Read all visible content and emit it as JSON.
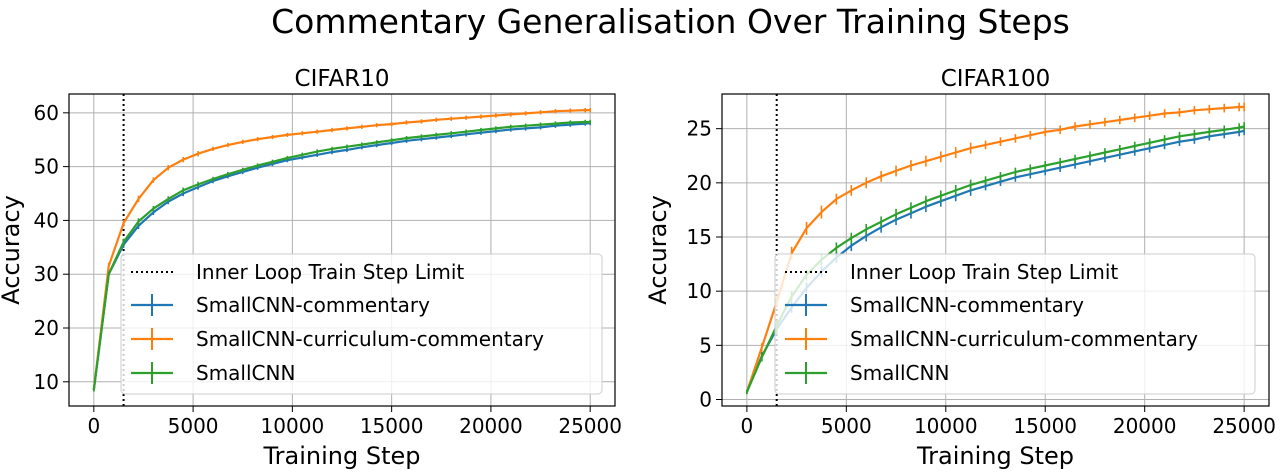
{
  "figure_title": "Commentary Generalisation Over Training Steps",
  "colors": {
    "commentary": "#1f77b4",
    "curriculum": "#ff7f0e",
    "baseline": "#2ca02c",
    "grid": "#b0b0b0",
    "vline": "#000000"
  },
  "chart_data": [
    {
      "type": "line",
      "title": "CIFAR10",
      "xlabel": "Training Step",
      "ylabel": "Accuracy",
      "xlim": [
        -1250,
        26250
      ],
      "ylim": [
        5.5,
        63.5
      ],
      "xticks": [
        0,
        5000,
        10000,
        15000,
        20000,
        25000
      ],
      "yticks": [
        10,
        20,
        30,
        40,
        50,
        60
      ],
      "grid": true,
      "legend_position": "lower right",
      "vline": {
        "x": 1500,
        "label": "Inner Loop Train Step Limit",
        "style": "dotted"
      },
      "series": [
        {
          "name": "SmallCNN-commentary",
          "color": "commentary",
          "x": [
            0,
            750,
            1500,
            2250,
            3000,
            3750,
            4500,
            5250,
            6000,
            6750,
            7500,
            8250,
            9000,
            9750,
            10500,
            11250,
            12000,
            12750,
            13500,
            14250,
            15000,
            15750,
            16500,
            17250,
            18000,
            18750,
            19500,
            20250,
            21000,
            21750,
            22500,
            23250,
            24000,
            24750,
            25000
          ],
          "y": [
            8.5,
            30.0,
            35.5,
            39.0,
            41.5,
            43.5,
            45.0,
            46.2,
            47.3,
            48.2,
            49.0,
            49.8,
            50.5,
            51.2,
            51.7,
            52.2,
            52.7,
            53.1,
            53.6,
            54.0,
            54.4,
            54.8,
            55.1,
            55.4,
            55.7,
            56.0,
            56.3,
            56.6,
            56.9,
            57.1,
            57.3,
            57.6,
            57.8,
            58.0,
            58.1
          ],
          "err": [
            0.3,
            0.5,
            0.6,
            0.6,
            0.5,
            0.5,
            0.5,
            0.5,
            0.4,
            0.4,
            0.4,
            0.4,
            0.4,
            0.4,
            0.4,
            0.4,
            0.4,
            0.4,
            0.4,
            0.4,
            0.4,
            0.4,
            0.4,
            0.4,
            0.4,
            0.4,
            0.4,
            0.4,
            0.4,
            0.4,
            0.4,
            0.4,
            0.4,
            0.4,
            0.4
          ]
        },
        {
          "name": "SmallCNN-curriculum-commentary",
          "color": "curriculum",
          "x": [
            0,
            750,
            1500,
            2250,
            3000,
            3750,
            4500,
            5250,
            6000,
            6750,
            7500,
            8250,
            9000,
            9750,
            10500,
            11250,
            12000,
            12750,
            13500,
            14250,
            15000,
            15750,
            16500,
            17250,
            18000,
            18750,
            19500,
            20250,
            21000,
            21750,
            22500,
            23250,
            24000,
            24750,
            25000
          ],
          "y": [
            8.5,
            31.5,
            39.5,
            44.0,
            47.5,
            49.8,
            51.3,
            52.4,
            53.3,
            54.0,
            54.6,
            55.1,
            55.5,
            55.9,
            56.2,
            56.5,
            56.8,
            57.1,
            57.4,
            57.7,
            57.9,
            58.2,
            58.4,
            58.7,
            58.9,
            59.1,
            59.3,
            59.5,
            59.7,
            59.9,
            60.1,
            60.3,
            60.4,
            60.5,
            60.5
          ],
          "err": [
            0.3,
            0.6,
            0.6,
            0.6,
            0.5,
            0.5,
            0.5,
            0.5,
            0.4,
            0.4,
            0.4,
            0.4,
            0.4,
            0.4,
            0.4,
            0.4,
            0.4,
            0.4,
            0.4,
            0.4,
            0.4,
            0.4,
            0.4,
            0.4,
            0.4,
            0.4,
            0.4,
            0.4,
            0.4,
            0.4,
            0.4,
            0.4,
            0.4,
            0.4,
            0.4
          ]
        },
        {
          "name": "SmallCNN",
          "color": "baseline",
          "x": [
            0,
            750,
            1500,
            2250,
            3000,
            3750,
            4500,
            5250,
            6000,
            6750,
            7500,
            8250,
            9000,
            9750,
            10500,
            11250,
            12000,
            12750,
            13500,
            14250,
            15000,
            15750,
            16500,
            17250,
            18000,
            18750,
            19500,
            20250,
            21000,
            21750,
            22500,
            23250,
            24000,
            24750,
            25000
          ],
          "y": [
            8.5,
            30.0,
            36.0,
            39.8,
            42.2,
            44.0,
            45.6,
            46.7,
            47.7,
            48.6,
            49.4,
            50.2,
            50.9,
            51.6,
            52.2,
            52.8,
            53.3,
            53.7,
            54.1,
            54.5,
            54.9,
            55.3,
            55.6,
            55.9,
            56.2,
            56.5,
            56.8,
            57.1,
            57.4,
            57.6,
            57.8,
            58.0,
            58.2,
            58.3,
            58.3
          ],
          "err": [
            0.3,
            0.5,
            0.6,
            0.6,
            0.5,
            0.5,
            0.5,
            0.5,
            0.4,
            0.4,
            0.4,
            0.4,
            0.4,
            0.4,
            0.4,
            0.4,
            0.4,
            0.4,
            0.4,
            0.4,
            0.4,
            0.4,
            0.4,
            0.4,
            0.4,
            0.4,
            0.4,
            0.4,
            0.4,
            0.4,
            0.4,
            0.4,
            0.4,
            0.4,
            0.4
          ]
        }
      ]
    },
    {
      "type": "line",
      "title": "CIFAR100",
      "xlabel": "Training Step",
      "ylabel": "Accuracy",
      "xlim": [
        -1250,
        26250
      ],
      "ylim": [
        -0.6,
        28.2
      ],
      "xticks": [
        0,
        5000,
        10000,
        15000,
        20000,
        25000
      ],
      "yticks": [
        0,
        5,
        10,
        15,
        20,
        25
      ],
      "grid": true,
      "legend_position": "lower right",
      "vline": {
        "x": 1500,
        "label": "Inner Loop Train Step Limit",
        "style": "dotted"
      },
      "series": [
        {
          "name": "SmallCNN-commentary",
          "color": "commentary",
          "x": [
            0,
            750,
            1500,
            2250,
            3000,
            3750,
            4500,
            5250,
            6000,
            6750,
            7500,
            8250,
            9000,
            9750,
            10500,
            11250,
            12000,
            12750,
            13500,
            14250,
            15000,
            15750,
            16500,
            17250,
            18000,
            18750,
            19500,
            20250,
            21000,
            21750,
            22500,
            23250,
            24000,
            24750,
            25000
          ],
          "y": [
            0.7,
            4.0,
            6.5,
            8.5,
            10.3,
            11.8,
            13.1,
            14.2,
            15.1,
            15.9,
            16.6,
            17.2,
            17.8,
            18.3,
            18.8,
            19.3,
            19.7,
            20.1,
            20.5,
            20.8,
            21.1,
            21.4,
            21.7,
            22.0,
            22.3,
            22.6,
            22.9,
            23.2,
            23.5,
            23.8,
            24.0,
            24.3,
            24.5,
            24.7,
            24.8
          ],
          "err": [
            0.2,
            0.4,
            0.5,
            0.5,
            0.5,
            0.5,
            0.5,
            0.5,
            0.5,
            0.5,
            0.5,
            0.5,
            0.5,
            0.5,
            0.5,
            0.5,
            0.4,
            0.4,
            0.4,
            0.4,
            0.4,
            0.4,
            0.4,
            0.4,
            0.4,
            0.4,
            0.4,
            0.4,
            0.4,
            0.4,
            0.4,
            0.4,
            0.4,
            0.4,
            0.4
          ]
        },
        {
          "name": "SmallCNN-curriculum-commentary",
          "color": "curriculum",
          "x": [
            0,
            750,
            1500,
            2250,
            3000,
            3750,
            4500,
            5250,
            6000,
            6750,
            7500,
            8250,
            9000,
            9750,
            10500,
            11250,
            12000,
            12750,
            13500,
            14250,
            15000,
            15750,
            16500,
            17250,
            18000,
            18750,
            19500,
            20250,
            21000,
            21750,
            22500,
            23250,
            24000,
            24750,
            25000
          ],
          "y": [
            0.7,
            4.8,
            9.0,
            13.5,
            15.8,
            17.3,
            18.5,
            19.3,
            20.0,
            20.6,
            21.1,
            21.6,
            22.0,
            22.4,
            22.8,
            23.2,
            23.5,
            23.8,
            24.1,
            24.4,
            24.7,
            24.9,
            25.2,
            25.4,
            25.6,
            25.8,
            26.0,
            26.2,
            26.4,
            26.5,
            26.7,
            26.8,
            26.9,
            27.0,
            27.0
          ],
          "err": [
            0.2,
            0.4,
            0.5,
            0.6,
            0.6,
            0.6,
            0.5,
            0.5,
            0.5,
            0.5,
            0.5,
            0.5,
            0.5,
            0.5,
            0.5,
            0.5,
            0.4,
            0.4,
            0.4,
            0.4,
            0.4,
            0.4,
            0.4,
            0.4,
            0.4,
            0.4,
            0.4,
            0.4,
            0.4,
            0.4,
            0.4,
            0.4,
            0.4,
            0.4,
            0.4
          ]
        },
        {
          "name": "SmallCNN",
          "color": "baseline",
          "x": [
            0,
            750,
            1500,
            2250,
            3000,
            3750,
            4500,
            5250,
            6000,
            6750,
            7500,
            8250,
            9000,
            9750,
            10500,
            11250,
            12000,
            12750,
            13500,
            14250,
            15000,
            15750,
            16500,
            17250,
            18000,
            18750,
            19500,
            20250,
            21000,
            21750,
            22500,
            23250,
            24000,
            24750,
            25000
          ],
          "y": [
            0.7,
            3.9,
            6.8,
            9.5,
            11.5,
            12.9,
            14.0,
            14.9,
            15.7,
            16.4,
            17.1,
            17.7,
            18.3,
            18.8,
            19.3,
            19.8,
            20.2,
            20.6,
            21.0,
            21.3,
            21.6,
            21.9,
            22.2,
            22.5,
            22.8,
            23.1,
            23.4,
            23.7,
            24.0,
            24.3,
            24.5,
            24.7,
            24.9,
            25.1,
            25.2
          ],
          "err": [
            0.2,
            0.4,
            0.5,
            0.5,
            0.5,
            0.5,
            0.5,
            0.5,
            0.5,
            0.5,
            0.5,
            0.5,
            0.5,
            0.5,
            0.5,
            0.5,
            0.4,
            0.4,
            0.4,
            0.4,
            0.4,
            0.4,
            0.4,
            0.4,
            0.4,
            0.4,
            0.4,
            0.4,
            0.4,
            0.4,
            0.4,
            0.4,
            0.4,
            0.4,
            0.4
          ]
        }
      ]
    }
  ]
}
